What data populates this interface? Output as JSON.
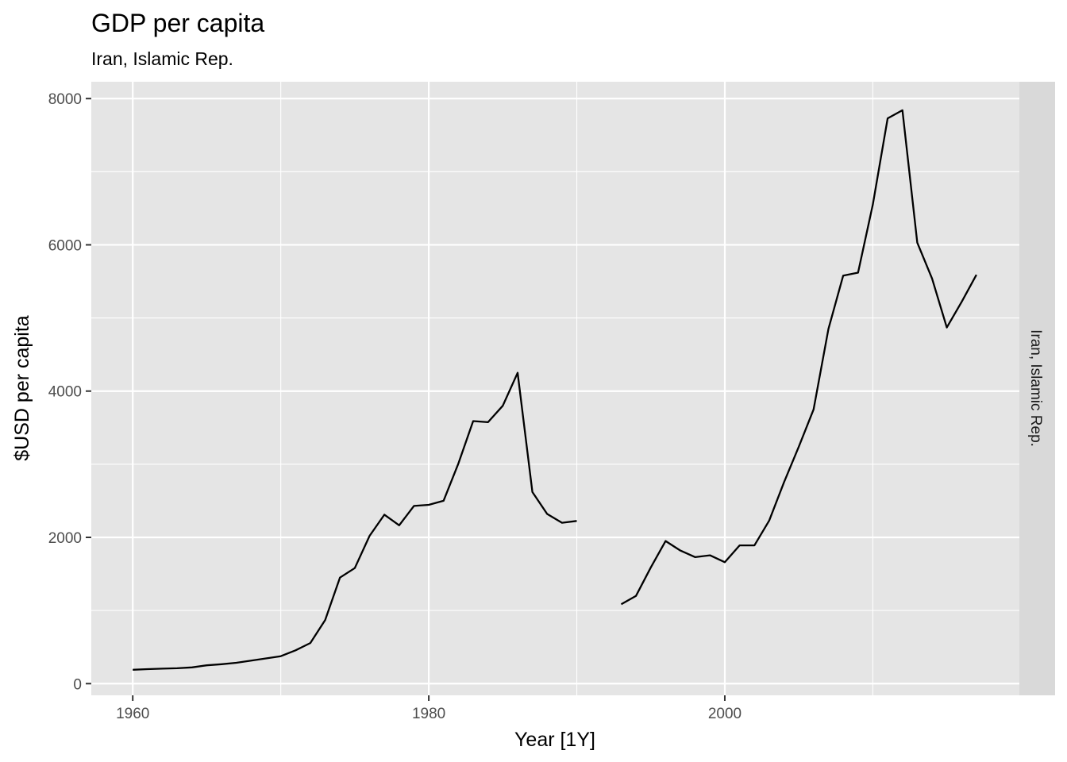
{
  "chart_data": {
    "type": "line",
    "title": "GDP per capita",
    "subtitle": "Iran, Islamic Rep.",
    "xlabel": "Year [1Y]",
    "ylabel": "$USD per capita",
    "facet_label": "Iran, Islamic Rep.",
    "xlim": [
      1957.2,
      2019.9
    ],
    "ylim": [
      -160,
      8230
    ],
    "x_ticks": [
      1960,
      1980,
      2000
    ],
    "x_tick_labels": [
      "1960",
      "1980",
      "2000"
    ],
    "y_ticks": [
      0,
      2000,
      4000,
      6000,
      8000
    ],
    "y_tick_labels": [
      "0",
      "2000",
      "4000",
      "6000",
      "8000"
    ],
    "grid": true,
    "line_color": "#000000",
    "panel_background": "#e5e5e5",
    "strip_background": "#d9d9d9",
    "series": [
      {
        "x": [
          1960,
          1961,
          1962,
          1963,
          1964,
          1965,
          1966,
          1967,
          1968,
          1969,
          1970,
          1971,
          1972,
          1973,
          1974,
          1975,
          1976,
          1977,
          1978,
          1979,
          1980,
          1981,
          1982,
          1983,
          1984,
          1985,
          1986,
          1987,
          1988,
          1989,
          1990,
          1991,
          1992,
          1993,
          1994,
          1995,
          1996,
          1997,
          1998,
          1999,
          2000,
          2001,
          2002,
          2003,
          2004,
          2005,
          2006,
          2007,
          2008,
          2009,
          2010,
          2011,
          2012,
          2013,
          2014,
          2015,
          2016,
          2017
        ],
        "y": [
          190,
          198,
          205,
          210,
          222,
          250,
          265,
          285,
          315,
          345,
          375,
          455,
          555,
          870,
          1450,
          1580,
          2020,
          2310,
          2165,
          2430,
          2445,
          2500,
          3010,
          3590,
          3575,
          3800,
          4250,
          2620,
          2320,
          2200,
          2225,
          null,
          null,
          1085,
          1200,
          1590,
          1950,
          1820,
          1730,
          1755,
          1660,
          1890,
          1890,
          2230,
          2755,
          3240,
          3750,
          4850,
          5580,
          5620,
          6550,
          7730,
          7840,
          6030,
          5540,
          4870,
          5220,
          5590
        ]
      }
    ]
  }
}
